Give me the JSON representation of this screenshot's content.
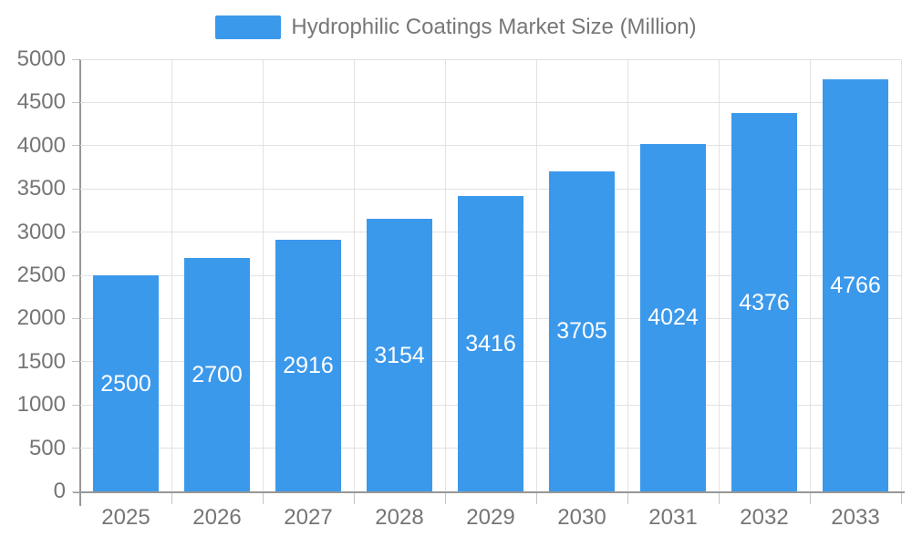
{
  "legend": {
    "label": "Hydrophilic Coatings Market Size (Million)"
  },
  "chart_data": {
    "type": "bar",
    "title": "Hydrophilic Coatings Market Size (Million)",
    "xlabel": "",
    "ylabel": "",
    "categories": [
      "2025",
      "2026",
      "2027",
      "2028",
      "2029",
      "2030",
      "2031",
      "2032",
      "2033"
    ],
    "series": [
      {
        "name": "Hydrophilic Coatings Market Size (Million)",
        "values": [
          2500,
          2700,
          2916,
          3154,
          3416,
          3705,
          4024,
          4376,
          4766
        ]
      }
    ],
    "value_labels": [
      "2500",
      "2700",
      "2916",
      "3154",
      "3416",
      "3705",
      "4024",
      "4376",
      "4766"
    ],
    "value_label_position": "inside-middle",
    "ylim": [
      0,
      5000
    ],
    "ytick_step": 500,
    "yticks": [
      0,
      500,
      1000,
      1500,
      2000,
      2500,
      3000,
      3500,
      4000,
      4500,
      5000
    ],
    "grid": true,
    "legend_position": "top-center"
  },
  "colors": {
    "bar": "#3B99EC",
    "grid": "#E2E2E2",
    "axis_line": "#979797",
    "tick": "#C4C4C4",
    "axis_text": "#757575",
    "legend_text": "#777777",
    "value_text": "#FFFFFF",
    "background": "#FFFFFF"
  }
}
